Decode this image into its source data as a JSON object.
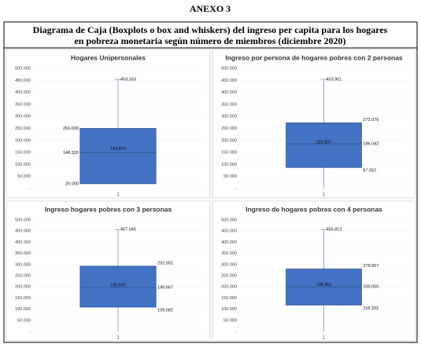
{
  "header": {
    "annex": "ANEXO 3",
    "title_line1": "Diagrama de Caja (Boxplots o box and whiskers) del ingreso per capita para los hogares",
    "title_line2": "en pobreza monetaria según número de miembros (diciembre 2020)"
  },
  "chart_data": [
    {
      "type": "box",
      "title": "Hogares Unipersonales",
      "categories": [
        "1"
      ],
      "color": "#4472c4",
      "stats": {
        "min": 20000,
        "q1": 20000,
        "median": 148333,
        "q3": 250000,
        "max": 453333,
        "mean": 154853
      },
      "stat_labels": {
        "q1": "20.000",
        "median": "148.333",
        "q3": "250.000",
        "max": "453.333",
        "mean": "154.853"
      },
      "ylim": [
        0,
        500000
      ],
      "yticks": [
        {
          "value": 0,
          "label": "-"
        },
        {
          "value": 50000,
          "label": "50.000"
        },
        {
          "value": 100000,
          "label": "100.000"
        },
        {
          "value": 150000,
          "label": "150.000"
        },
        {
          "value": 200000,
          "label": "200.000"
        },
        {
          "value": 250000,
          "label": "250.000"
        },
        {
          "value": 300000,
          "label": "300.000"
        },
        {
          "value": 350000,
          "label": "350.000"
        },
        {
          "value": 400000,
          "label": "400.000"
        },
        {
          "value": 450000,
          "label": "450.000"
        },
        {
          "value": 500000,
          "label": "500.000"
        }
      ]
    },
    {
      "type": "box",
      "title": "Ingreso por persona de hogares pobres con 2 personas",
      "categories": [
        "1"
      ],
      "color": "#4472c4",
      "stats": {
        "min": 0,
        "q1": 87552,
        "median": 186042,
        "q3": 273076,
        "max": 453901,
        "mean": 182897
      },
      "stat_labels": {
        "q1": "87.552",
        "median": "186.042",
        "q3": "273.076",
        "max": "453.901",
        "mean": "182.897"
      },
      "ylim": [
        0,
        500000
      ],
      "yticks": [
        {
          "value": 0,
          "label": "-"
        },
        {
          "value": 50000,
          "label": "50.000"
        },
        {
          "value": 100000,
          "label": "100.000"
        },
        {
          "value": 150000,
          "label": "150.000"
        },
        {
          "value": 200000,
          "label": "200.000"
        },
        {
          "value": 250000,
          "label": "250.000"
        },
        {
          "value": 300000,
          "label": "300.000"
        },
        {
          "value": 350000,
          "label": "350.000"
        },
        {
          "value": 400000,
          "label": "400.000"
        },
        {
          "value": 450000,
          "label": "450.000"
        },
        {
          "value": 500000,
          "label": "500.000"
        }
      ]
    },
    {
      "type": "box",
      "title": "Ingreso hogares pobres con 3 personas",
      "categories": [
        "1"
      ],
      "color": "#4472c4",
      "stats": {
        "min": 0,
        "q1": 109082,
        "median": 196667,
        "q3": 292601,
        "max": 457045,
        "mean": 196825
      },
      "stat_labels": {
        "q1": "109.082",
        "median": "196.667",
        "q3": "292.601",
        "max": "457.045",
        "mean": "196.825"
      },
      "ylim": [
        0,
        500000
      ],
      "yticks": [
        {
          "value": 0,
          "label": "-"
        },
        {
          "value": 50000,
          "label": "50.000"
        },
        {
          "value": 100000,
          "label": "100.000"
        },
        {
          "value": 150000,
          "label": "150.000"
        },
        {
          "value": 200000,
          "label": "200.000"
        },
        {
          "value": 250000,
          "label": "250.000"
        },
        {
          "value": 300000,
          "label": "300.000"
        },
        {
          "value": 350000,
          "label": "350.000"
        },
        {
          "value": 400000,
          "label": "400.000"
        },
        {
          "value": 450000,
          "label": "450.000"
        },
        {
          "value": 500000,
          "label": "500.000"
        }
      ]
    },
    {
      "type": "box",
      "title": "Ingreso de hogares pobres con 4 personas",
      "categories": [
        "1"
      ],
      "color": "#4472c4",
      "stats": {
        "min": 0,
        "q1": 118333,
        "median": 200000,
        "q3": 279667,
        "max": 456813,
        "mean": 198456
      },
      "stat_labels": {
        "q1": "118.333",
        "median": "200.000",
        "q3": "279.667",
        "max": "456.813",
        "mean": "198.456"
      },
      "ylim": [
        0,
        500000
      ],
      "yticks": [
        {
          "value": 0,
          "label": "-"
        },
        {
          "value": 50000,
          "label": "50.000"
        },
        {
          "value": 100000,
          "label": "100.000"
        },
        {
          "value": 150000,
          "label": "150.000"
        },
        {
          "value": 200000,
          "label": "200.000"
        },
        {
          "value": 250000,
          "label": "250.000"
        },
        {
          "value": 300000,
          "label": "300.000"
        },
        {
          "value": 350000,
          "label": "350.000"
        },
        {
          "value": 400000,
          "label": "400.000"
        },
        {
          "value": 450000,
          "label": "450.000"
        },
        {
          "value": 500000,
          "label": "500.000"
        }
      ]
    }
  ]
}
